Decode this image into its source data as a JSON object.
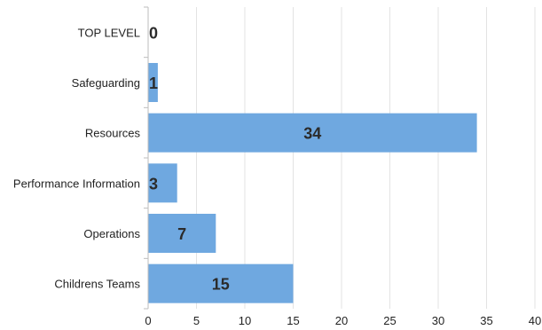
{
  "chart_data": {
    "type": "bar",
    "orientation": "horizontal",
    "categories": [
      "TOP LEVEL",
      "Safeguarding",
      "Resources",
      "Performance Information",
      "Operations",
      "Childrens Teams"
    ],
    "values": [
      0,
      1,
      34,
      3,
      7,
      15
    ],
    "data_labels": [
      "0",
      "1",
      "34",
      "3",
      "7",
      "15"
    ],
    "xlim": [
      0,
      40
    ],
    "xticks": [
      0,
      5,
      10,
      15,
      20,
      25,
      30,
      35,
      40
    ],
    "xtick_labels": [
      "0",
      "5",
      "10",
      "15",
      "20",
      "25",
      "30",
      "35",
      "40"
    ],
    "title": "",
    "xlabel": "",
    "ylabel": "",
    "grid": true,
    "legend": "none",
    "colors": {
      "bar": "#6fa8e0",
      "grid": "#e3e3e3",
      "axis": "#bdbdbd",
      "text": "#222222",
      "data_label": "#2b2b2b"
    }
  }
}
